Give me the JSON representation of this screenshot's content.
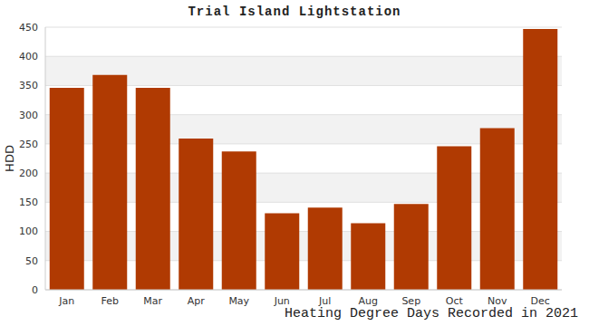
{
  "chart_data": {
    "type": "bar",
    "title": "Trial Island Lightstation",
    "x_label": "Heating Degree Days Recorded in 2021",
    "y_label": "HDD",
    "categories": [
      "Jan",
      "Feb",
      "Mar",
      "Apr",
      "May",
      "Jun",
      "Jul",
      "Aug",
      "Sep",
      "Oct",
      "Nov",
      "Dec"
    ],
    "values": [
      346,
      368,
      346,
      259,
      237,
      131,
      141,
      114,
      147,
      246,
      277,
      447
    ],
    "color": "#b03a02",
    "ylim": [
      0,
      450
    ],
    "yticks": [
      0,
      50,
      100,
      150,
      200,
      250,
      300,
      350,
      400,
      450
    ],
    "grid": true
  }
}
